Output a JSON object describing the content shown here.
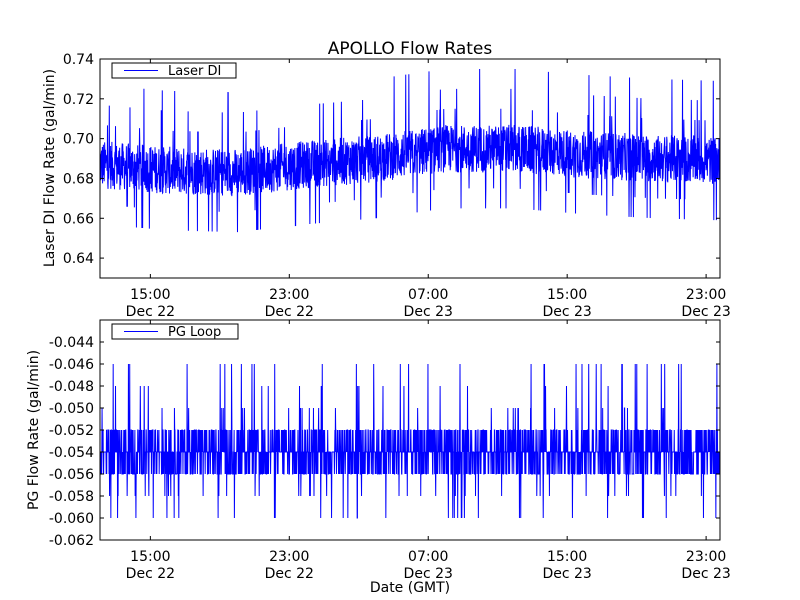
{
  "chart_data": [
    {
      "type": "line",
      "title": "APOLLO Flow Rates",
      "xlabel": "",
      "ylabel": "Laser DI Flow Rate (gal/min)",
      "x_unit": "hours since Dec 22 00:00 GMT",
      "xlim": [
        12.1,
        47.8
      ],
      "ylim": [
        0.63,
        0.74
      ],
      "yticks": [
        0.64,
        0.66,
        0.68,
        0.7,
        0.72,
        0.74
      ],
      "ytick_labels": [
        "0.64",
        "0.66",
        "0.68",
        "0.70",
        "0.72",
        "0.74"
      ],
      "xticks": [
        15,
        23,
        31,
        39,
        47
      ],
      "xtick_labels": [
        [
          "15:00",
          "Dec 22"
        ],
        [
          "23:00",
          "Dec 22"
        ],
        [
          "07:00",
          "Dec 23"
        ],
        [
          "15:00",
          "Dec 23"
        ],
        [
          "23:00",
          "Dec 23"
        ]
      ],
      "legend": {
        "entries": [
          "Laser DI"
        ],
        "placement": "top-left"
      },
      "grid": false,
      "series": [
        {
          "name": "Laser DI",
          "color": "#0000ff",
          "baseline_trend": {
            "x": [
              12.1,
              16,
              20,
              24,
              28,
              32,
              36,
              40,
              44,
              47.8
            ],
            "y": [
              0.687,
              0.684,
              0.683,
              0.687,
              0.69,
              0.695,
              0.695,
              0.692,
              0.69,
              0.689
            ]
          },
          "noise_band": 0.012,
          "min": 0.638,
          "max": 0.735
        }
      ]
    },
    {
      "type": "line",
      "title": "",
      "xlabel": "Date (GMT)",
      "ylabel": "PG Flow Rate (gal/min)",
      "x_unit": "hours since Dec 22 00:00 GMT",
      "xlim": [
        12.1,
        47.8
      ],
      "ylim": [
        -0.062,
        -0.042
      ],
      "yticks": [
        -0.062,
        -0.06,
        -0.058,
        -0.056,
        -0.054,
        -0.052,
        -0.05,
        -0.048,
        -0.046,
        -0.044
      ],
      "ytick_labels": [
        "-0.062",
        "-0.060",
        "-0.058",
        "-0.056",
        "-0.054",
        "-0.052",
        "-0.050",
        "-0.048",
        "-0.046",
        "-0.044"
      ],
      "xticks": [
        15,
        23,
        31,
        39,
        47
      ],
      "xtick_labels": [
        [
          "15:00",
          "Dec 22"
        ],
        [
          "23:00",
          "Dec 22"
        ],
        [
          "07:00",
          "Dec 23"
        ],
        [
          "15:00",
          "Dec 23"
        ],
        [
          "23:00",
          "Dec 23"
        ]
      ],
      "legend": {
        "entries": [
          "PG Loop"
        ],
        "placement": "top-left"
      },
      "grid": false,
      "series": [
        {
          "name": "PG Loop",
          "color": "#0000ff",
          "baseline_trend": {
            "x": [
              12.1,
              47.8
            ],
            "y": [
              -0.054,
              -0.054
            ]
          },
          "noise_band": 0.002,
          "min": -0.062,
          "max": -0.0425
        }
      ]
    }
  ]
}
